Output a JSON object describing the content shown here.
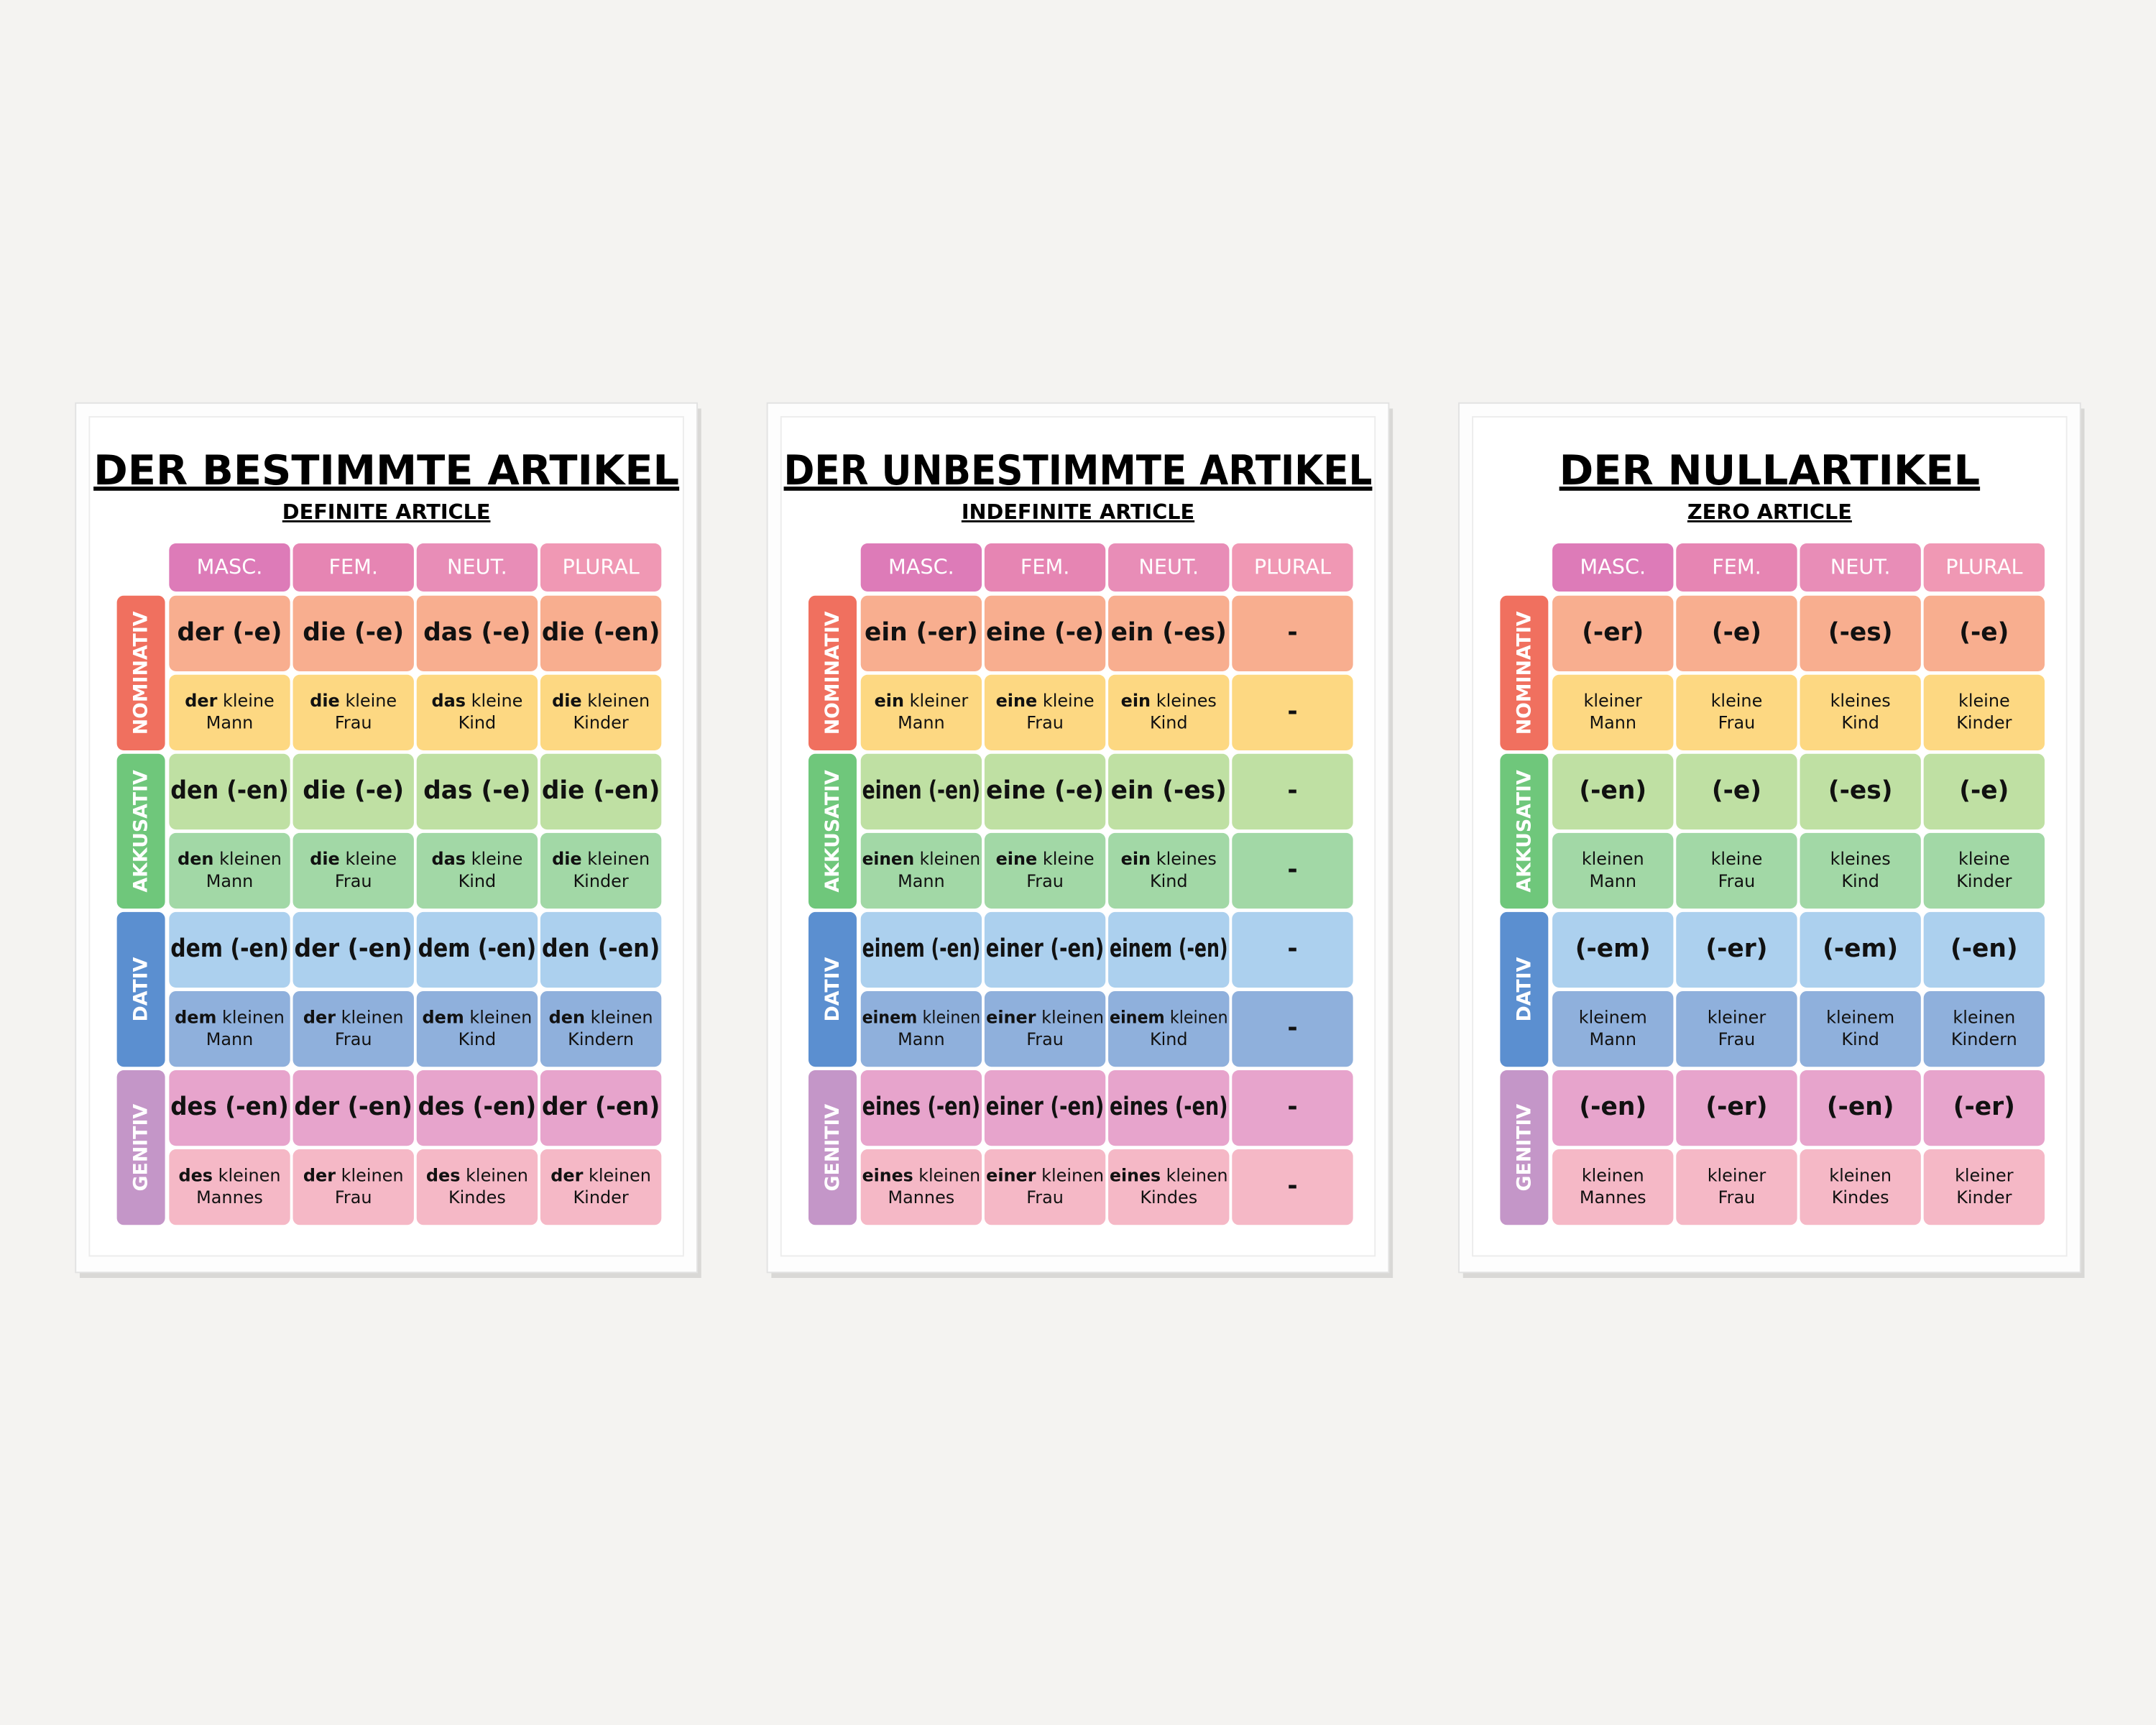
{
  "posters": [
    {
      "title": "DER BESTIMMTE ARTIKEL",
      "subtitle": "DEFINITE ARTICLE",
      "columns": [
        "MASC.",
        "FEM.",
        "NEUT.",
        "PLURAL"
      ],
      "cases": [
        {
          "name": "NOMINATIV",
          "forms": [
            "der (-e)",
            "die (-e)",
            "das (-e)",
            "die (-en)"
          ],
          "examples": [
            {
              "article": "der",
              "adjective": "kleine",
              "noun": "Mann"
            },
            {
              "article": "die",
              "adjective": "kleine",
              "noun": "Frau"
            },
            {
              "article": "das",
              "adjective": "kleine",
              "noun": "Kind"
            },
            {
              "article": "die",
              "adjective": "kleinen",
              "noun": "Kinder"
            }
          ]
        },
        {
          "name": "AKKUSATIV",
          "forms": [
            "den (-en)",
            "die (-e)",
            "das (-e)",
            "die (-en)"
          ],
          "examples": [
            {
              "article": "den",
              "adjective": "kleinen",
              "noun": "Mann"
            },
            {
              "article": "die",
              "adjective": "kleine",
              "noun": "Frau"
            },
            {
              "article": "das",
              "adjective": "kleine",
              "noun": "Kind"
            },
            {
              "article": "die",
              "adjective": "kleinen",
              "noun": "Kinder"
            }
          ]
        },
        {
          "name": "DATIV",
          "forms": [
            "dem (-en)",
            "der (-en)",
            "dem (-en)",
            "den (-en)"
          ],
          "examples": [
            {
              "article": "dem",
              "adjective": "kleinen",
              "noun": "Mann"
            },
            {
              "article": "der",
              "adjective": "kleinen",
              "noun": "Frau"
            },
            {
              "article": "dem",
              "adjective": "kleinen",
              "noun": "Kind"
            },
            {
              "article": "den",
              "adjective": "kleinen",
              "noun": "Kindern"
            }
          ]
        },
        {
          "name": "GENITIV",
          "forms": [
            "des (-en)",
            "der (-en)",
            "des (-en)",
            "der (-en)"
          ],
          "examples": [
            {
              "article": "des",
              "adjective": "kleinen",
              "noun": "Mannes"
            },
            {
              "article": "der",
              "adjective": "kleinen",
              "noun": "Frau"
            },
            {
              "article": "des",
              "adjective": "kleinen",
              "noun": "Kindes"
            },
            {
              "article": "der",
              "adjective": "kleinen",
              "noun": "Kinder"
            }
          ]
        }
      ]
    },
    {
      "title": "DER UNBESTIMMTE ARTIKEL",
      "subtitle": "INDEFINITE ARTICLE",
      "columns": [
        "MASC.",
        "FEM.",
        "NEUT.",
        "PLURAL"
      ],
      "cases": [
        {
          "name": "NOMINATIV",
          "forms": [
            "ein (-er)",
            "eine (-e)",
            "ein (-es)",
            "-"
          ],
          "examples": [
            {
              "article": "ein",
              "adjective": "kleiner",
              "noun": "Mann"
            },
            {
              "article": "eine",
              "adjective": "kleine",
              "noun": "Frau"
            },
            {
              "article": "ein",
              "adjective": "kleines",
              "noun": "Kind"
            },
            "-"
          ]
        },
        {
          "name": "AKKUSATIV",
          "forms": [
            "einen (-en)",
            "eine (-e)",
            "ein (-es)",
            "-"
          ],
          "examples": [
            {
              "article": "einen",
              "adjective": "kleinen",
              "noun": "Mann"
            },
            {
              "article": "eine",
              "adjective": "kleine",
              "noun": "Frau"
            },
            {
              "article": "ein",
              "adjective": "kleines",
              "noun": "Kind"
            },
            "-"
          ]
        },
        {
          "name": "DATIV",
          "forms": [
            "einem (-en)",
            "einer (-en)",
            "einem (-en)",
            "-"
          ],
          "examples": [
            {
              "article": "einem",
              "adjective": "kleinen",
              "noun": "Mann"
            },
            {
              "article": "einer",
              "adjective": "kleinen",
              "noun": "Frau"
            },
            {
              "article": "einem",
              "adjective": "kleinen",
              "noun": "Kind"
            },
            "-"
          ]
        },
        {
          "name": "GENITIV",
          "forms": [
            "eines (-en)",
            "einer (-en)",
            "eines (-en)",
            "-"
          ],
          "examples": [
            {
              "article": "eines",
              "adjective": "kleinen",
              "noun": "Mannes"
            },
            {
              "article": "einer",
              "adjective": "kleinen",
              "noun": "Frau"
            },
            {
              "article": "eines",
              "adjective": "kleinen",
              "noun": "Kindes"
            },
            "-"
          ]
        }
      ]
    },
    {
      "title": "DER NULLARTIKEL",
      "subtitle": "ZERO ARTICLE",
      "columns": [
        "MASC.",
        "FEM.",
        "NEUT.",
        "PLURAL"
      ],
      "cases": [
        {
          "name": "NOMINATIV",
          "forms": [
            "(-er)",
            "(-e)",
            "(-es)",
            "(-e)"
          ],
          "examples": [
            {
              "adjective": "kleiner",
              "noun": "Mann"
            },
            {
              "adjective": "kleine",
              "noun": "Frau"
            },
            {
              "adjective": "kleines",
              "noun": "Kind"
            },
            {
              "adjective": "kleine",
              "noun": "Kinder"
            }
          ]
        },
        {
          "name": "AKKUSATIV",
          "forms": [
            "(-en)",
            "(-e)",
            "(-es)",
            "(-e)"
          ],
          "examples": [
            {
              "adjective": "kleinen",
              "noun": "Mann"
            },
            {
              "adjective": "kleine",
              "noun": "Frau"
            },
            {
              "adjective": "kleines",
              "noun": "Kind"
            },
            {
              "adjective": "kleine",
              "noun": "Kinder"
            }
          ]
        },
        {
          "name": "DATIV",
          "forms": [
            "(-em)",
            "(-er)",
            "(-em)",
            "(-en)"
          ],
          "examples": [
            {
              "adjective": "kleinem",
              "noun": "Mann"
            },
            {
              "adjective": "kleiner",
              "noun": "Frau"
            },
            {
              "adjective": "kleinem",
              "noun": "Kind"
            },
            {
              "adjective": "kleinen",
              "noun": "Kindern"
            }
          ]
        },
        {
          "name": "GENITIV",
          "forms": [
            "(-en)",
            "(-er)",
            "(-en)",
            "(-er)"
          ],
          "examples": [
            {
              "adjective": "kleinen",
              "noun": "Mannes"
            },
            {
              "adjective": "kleiner",
              "noun": "Frau"
            },
            {
              "adjective": "kleinen",
              "noun": "Kindes"
            },
            {
              "adjective": "kleiner",
              "noun": "Kinder"
            }
          ]
        }
      ]
    }
  ]
}
